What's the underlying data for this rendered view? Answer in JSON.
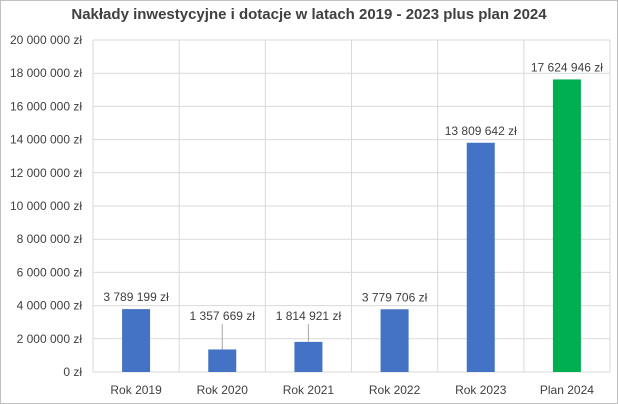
{
  "chart_data": {
    "type": "bar",
    "title": "Nakłady inwestycyjne i dotacje w latach 2019 - 2023 plus plan 2024",
    "xlabel": "",
    "ylabel": "",
    "ylim": [
      0,
      20000000
    ],
    "grid": true,
    "legend": "none",
    "categories": [
      "Rok 2019",
      "Rok 2020",
      "Rok 2021",
      "Rok 2022",
      "Rok 2023",
      "Plan 2024"
    ],
    "values": [
      3789199,
      1357669,
      1814921,
      3779706,
      13809642,
      17624946
    ],
    "value_labels": [
      "3 789 199 zł",
      "1 357 669 zł",
      "1 814 921 zł",
      "3 779 706 zł",
      "13 809 642 zł",
      "17 624 946 zł"
    ],
    "y_ticks": [
      0,
      2000000,
      4000000,
      6000000,
      8000000,
      10000000,
      12000000,
      14000000,
      16000000,
      18000000,
      20000000
    ],
    "y_tick_labels": [
      "0 zł",
      "2 000 000 zł",
      "4 000 000 zł",
      "6 000 000 zł",
      "8 000 000 zł",
      "10 000 000 zł",
      "12 000 000 zł",
      "14 000 000 zł",
      "16 000 000 zł",
      "18 000 000 zł",
      "20 000 000 zł"
    ],
    "colors": [
      "#4472c4",
      "#4472c4",
      "#4472c4",
      "#4472c4",
      "#4472c4",
      "#00b050"
    ]
  }
}
